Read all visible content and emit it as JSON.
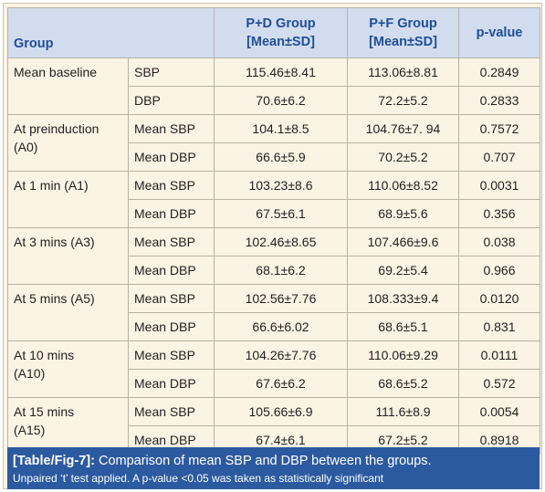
{
  "header": {
    "group": "Group",
    "pd_line1": "P+D Group",
    "pd_line2": "[Mean±SD]",
    "pf_line1": "P+F Group",
    "pf_line2": "[Mean±SD]",
    "pvalue": "p-value"
  },
  "rows": [
    {
      "group_line1": "Mean baseline",
      "group_line2": "",
      "measure": "SBP",
      "pd": "115.46±8.41",
      "pf": "113.06±8.81",
      "p": "0.2849"
    },
    {
      "measure": "DBP",
      "pd": "70.6±6.2",
      "pf": "72.2±5.2",
      "p": "0.2833"
    },
    {
      "group_line1": "At preinduction",
      "group_line2": "(A0)",
      "measure": "Mean SBP",
      "pd": "104.1±8.5",
      "pf": "104.76±7. 94",
      "p": "0.7572"
    },
    {
      "measure": "Mean DBP",
      "pd": "66.6±5.9",
      "pf": "70.2±5.2",
      "p": "0.707"
    },
    {
      "group_line1": "At 1 min (A1)",
      "group_line2": "",
      "measure": "Mean SBP",
      "pd": "103.23±8.6",
      "pf": "110.06±8.52",
      "p": "0.0031"
    },
    {
      "measure": "Mean DBP",
      "pd": "67.5±6.1",
      "pf": "68.9±5.6",
      "p": "0.356"
    },
    {
      "group_line1": "At 3 mins (A3)",
      "group_line2": "",
      "measure": "Mean SBP",
      "pd": "102.46±8.65",
      "pf": "107.466±9.6",
      "p": "0.038"
    },
    {
      "measure": "Mean DBP",
      "pd": "68.1±6.2",
      "pf": "69.2±5.4",
      "p": "0.966"
    },
    {
      "group_line1": "At 5 mins (A5)",
      "group_line2": "",
      "measure": "Mean SBP",
      "pd": "102.56±7.76",
      "pf": "108.333±9.4",
      "p": "0.0120"
    },
    {
      "measure": "Mean DBP",
      "pd": "66.6±6.02",
      "pf": "68.6±5.1",
      "p": "0.831"
    },
    {
      "group_line1": "At 10 mins",
      "group_line2": "(A10)",
      "measure": "Mean SBP",
      "pd": "104.26±7.76",
      "pf": "110.06±9.29",
      "p": "0.0111"
    },
    {
      "measure": "Mean DBP",
      "pd": "67.6±6.2",
      "pf": "68.6±5.2",
      "p": "0.572"
    },
    {
      "group_line1": "At 15 mins",
      "group_line2": "(A15)",
      "measure": "Mean SBP",
      "pd": "105.66±6.9",
      "pf": "111.6±8.9",
      "p": "0.0054"
    },
    {
      "measure": "Mean DBP",
      "pd": "67.4±6.1",
      "pf": "67.2±5.2",
      "p": "0.8918"
    }
  ],
  "caption": {
    "label": "[Table/Fig-7]:",
    "title": " Comparison of mean SBP and DBP between the groups.",
    "note": "Unpaired ‘t’ test applied. A p-value <0.05 was taken as statistically significant"
  },
  "colors": {
    "header_bg": "#d1dcee",
    "header_text": "#1f4e96",
    "body_bg": "#fbf3e3",
    "caption_bg": "#2c5aa0"
  }
}
